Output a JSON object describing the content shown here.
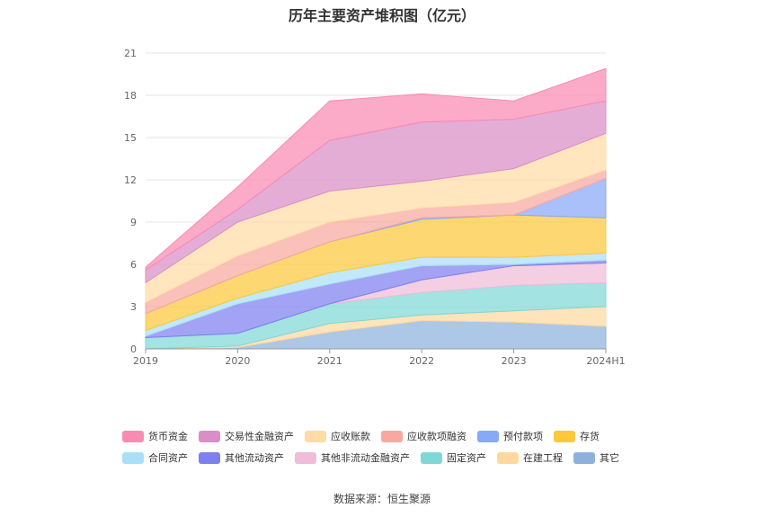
{
  "title": "历年主要资产堆积图（亿元）",
  "source": "数据来源：恒生聚源",
  "chart_data": {
    "type": "area",
    "stacked": true,
    "categories": [
      "2019",
      "2020",
      "2021",
      "2022",
      "2023",
      "2024H1"
    ],
    "ylim": [
      0,
      21
    ],
    "yticks": [
      0,
      3,
      6,
      9,
      12,
      15,
      18,
      21
    ],
    "grid": true,
    "legend_position": "bottom",
    "series": [
      {
        "name": "其它",
        "color": "#8eb1dc",
        "values": [
          0.0,
          0.1,
          1.2,
          2.0,
          1.9,
          1.6
        ]
      },
      {
        "name": "在建工程",
        "color": "#ffd8a0",
        "values": [
          0.0,
          0.1,
          0.6,
          0.4,
          0.8,
          1.4
        ]
      },
      {
        "name": "固定资产",
        "color": "#7fd8d6",
        "values": [
          0.8,
          0.9,
          1.4,
          1.6,
          1.8,
          1.7
        ]
      },
      {
        "name": "其他非流动金融资产",
        "color": "#f0bcd8",
        "values": [
          0.0,
          0.0,
          0.0,
          0.9,
          1.4,
          1.4
        ]
      },
      {
        "name": "其他流动资产",
        "color": "#7e7ff0",
        "values": [
          0.1,
          2.1,
          1.4,
          1.0,
          0.1,
          0.2
        ]
      },
      {
        "name": "合同资产",
        "color": "#a9e0f7",
        "values": [
          0.4,
          0.4,
          0.8,
          0.6,
          0.5,
          0.5
        ]
      },
      {
        "name": "存货",
        "color": "#fcc83c",
        "values": [
          1.2,
          1.6,
          2.2,
          2.7,
          3.0,
          2.5
        ]
      },
      {
        "name": "预付款项",
        "color": "#88a8f8",
        "values": [
          0.0,
          0.0,
          0.0,
          0.1,
          0.0,
          2.8
        ]
      },
      {
        "name": "应收款项融资",
        "color": "#f8a8a0",
        "values": [
          0.8,
          1.4,
          1.4,
          0.7,
          0.9,
          0.6
        ]
      },
      {
        "name": "应收账款",
        "color": "#ffdca6",
        "values": [
          1.4,
          2.4,
          2.2,
          1.9,
          2.4,
          2.6
        ]
      },
      {
        "name": "交易性金融资产",
        "color": "#da8ec6",
        "values": [
          0.9,
          0.9,
          3.6,
          4.2,
          3.5,
          2.3
        ]
      },
      {
        "name": "货币资金",
        "color": "#f98bb2",
        "values": [
          0.2,
          1.6,
          2.8,
          2.0,
          1.3,
          2.3
        ]
      }
    ],
    "legend_order": [
      [
        "货币资金",
        "交易性金融资产",
        "应收账款",
        "应收款项融资",
        "预付款项",
        "存货"
      ],
      [
        "合同资产",
        "其他流动资产",
        "其他非流动金融资产",
        "固定资产",
        "在建工程",
        "其它"
      ]
    ]
  }
}
